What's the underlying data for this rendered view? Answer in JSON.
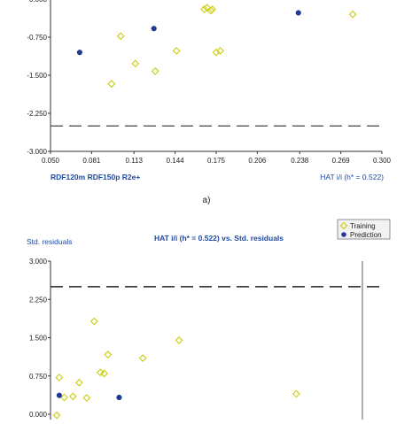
{
  "chart_data": [
    {
      "type": "scatter",
      "title": "",
      "footer_left": "RDF120m  RDF150p  R2e+",
      "footer_right": "HAT i/i (h* = 0.522)",
      "xlabel": "HAT i/i",
      "ylabel": "Std. residuals",
      "xlim": [
        0.05,
        0.3
      ],
      "ylim": [
        -3.0,
        -0.0
      ],
      "xticks": [
        "0.050",
        "0.081",
        "0.113",
        "0.144",
        "0.175",
        "0.206",
        "0.238",
        "0.269",
        "0.300"
      ],
      "yticks": [
        "-3.000",
        "-2.250",
        "-1.500",
        "-0.750"
      ],
      "visible_top_tick": "0.000",
      "threshold_y": -2.5,
      "grid": false,
      "series": [
        {
          "name": "Training",
          "color": "#e8e85a",
          "marker": "diamond-open",
          "x": [
            0.103,
            0.114,
            0.096,
            0.129,
            0.145,
            0.166,
            0.171,
            0.175,
            0.168,
            0.172,
            0.178,
            0.278
          ],
          "y": [
            -0.73,
            -1.27,
            -1.67,
            -1.42,
            -1.02,
            -0.2,
            -0.23,
            -1.05,
            -0.17,
            -0.2,
            -1.02,
            -0.3
          ]
        },
        {
          "name": "Prediction",
          "color": "#1f3c9a",
          "marker": "dot",
          "x": [
            0.072,
            0.128,
            0.237
          ],
          "y": [
            -1.05,
            -0.58,
            -0.27
          ]
        }
      ]
    },
    {
      "type": "scatter",
      "title": "HAT i/i (h* = 0.522) vs. Std. residuals",
      "ylabel": "Std. residuals",
      "xlim": [
        0.05,
        0.3
      ],
      "ylim": [
        0.0,
        3.0
      ],
      "yticks": [
        "0.000",
        "0.750",
        "1.500",
        "2.250",
        "3.000"
      ],
      "threshold_y": 2.5,
      "vline_x": 0.3,
      "grid": false,
      "legend": {
        "position": "top-right",
        "entries": [
          "Training",
          "Prediction"
        ]
      },
      "series": [
        {
          "name": "Training",
          "color": "#e8e85a",
          "marker": "diamond-open",
          "x": [
            0.055,
            0.057,
            0.061,
            0.068,
            0.073,
            0.079,
            0.085,
            0.09,
            0.093,
            0.096,
            0.124,
            0.153,
            0.247
          ],
          "y": [
            -0.02,
            0.72,
            0.33,
            0.35,
            0.62,
            0.32,
            1.82,
            0.82,
            0.8,
            1.17,
            1.1,
            1.45,
            0.4
          ]
        },
        {
          "name": "Prediction",
          "color": "#1f3c9a",
          "marker": "dot",
          "x": [
            0.057,
            0.105
          ],
          "y": [
            0.37,
            0.33
          ]
        }
      ]
    }
  ],
  "caption": "a)"
}
